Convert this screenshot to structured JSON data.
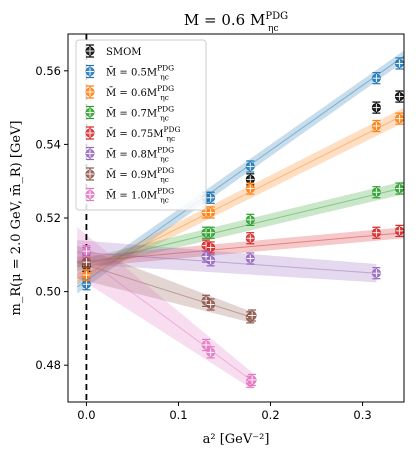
{
  "chart_data": {
    "type": "scatter",
    "title": "M = 0.6 M_ηc^PDG",
    "title_main": "M = 0.6 M",
    "title_sup": "PDG",
    "title_sub": "ηc",
    "xlabel": "a² [GeV⁻²]",
    "ylabel": "m_R(μ = 2.0 GeV, m̄_R) [GeV]",
    "xlim": [
      -0.02,
      0.345
    ],
    "ylim": [
      0.47,
      0.57
    ],
    "xticks": [
      0.0,
      0.1,
      0.2,
      0.3
    ],
    "xtick_labels": [
      "0.0",
      "0.1",
      "0.2",
      "0.3"
    ],
    "yticks": [
      0.48,
      0.5,
      0.52,
      0.54,
      0.56
    ],
    "ytick_labels": [
      "0.48",
      "0.50",
      "0.52",
      "0.54",
      "0.56"
    ],
    "grid": false,
    "legend_position": "top-left",
    "vertical_line_x": 0.0,
    "series": [
      {
        "name": "SMOM",
        "label_sup": "",
        "label_sub": "",
        "color": "#000000",
        "points": [
          [
            0.13,
            0.5255
          ],
          [
            0.178,
            0.5305
          ],
          [
            0.315,
            0.55
          ],
          [
            0.34,
            0.553
          ]
        ],
        "yerr": 0.0015,
        "continuum": [
          0.0,
          0.507
        ],
        "band": null
      },
      {
        "name": "M̄ = 0.5M",
        "label_sup": "PDG",
        "label_sub": "ηc",
        "color": "#1f77b4",
        "points": [
          [
            0.13,
            0.5255
          ],
          [
            0.135,
            0.5255
          ],
          [
            0.178,
            0.534
          ],
          [
            0.315,
            0.558
          ],
          [
            0.34,
            0.562
          ]
        ],
        "yerr": 0.0015,
        "continuum": [
          0.0,
          0.502
        ],
        "band": [
          [
            -0.01,
            0.4995,
            0.503
          ],
          [
            0.345,
            0.5625,
            0.5655
          ]
        ]
      },
      {
        "name": "M̄ = 0.6M",
        "label_sup": "PDG",
        "label_sub": "ηc",
        "color": "#ff7f0e",
        "points": [
          [
            0.13,
            0.5215
          ],
          [
            0.135,
            0.5215
          ],
          [
            0.178,
            0.528
          ],
          [
            0.315,
            0.545
          ],
          [
            0.34,
            0.547
          ]
        ],
        "yerr": 0.0015,
        "continuum": [
          0.0,
          0.5045
        ],
        "band": [
          [
            -0.01,
            0.502,
            0.505
          ],
          [
            0.345,
            0.546,
            0.55
          ]
        ]
      },
      {
        "name": "M̄ = 0.7M",
        "label_sup": "PDG",
        "label_sub": "ηc",
        "color": "#2ca02c",
        "points": [
          [
            0.13,
            0.516
          ],
          [
            0.135,
            0.516
          ],
          [
            0.178,
            0.5195
          ],
          [
            0.315,
            0.527
          ],
          [
            0.34,
            0.528
          ]
        ],
        "yerr": 0.0015,
        "continuum": [
          0.0,
          0.508
        ],
        "band": [
          [
            -0.01,
            0.5055,
            0.5085
          ],
          [
            0.345,
            0.5265,
            0.53
          ]
        ]
      },
      {
        "name": "M̄ = 0.75M",
        "label_sup": "PDG",
        "label_sub": "ηc",
        "color": "#d62728",
        "points": [
          [
            0.13,
            0.5125
          ],
          [
            0.135,
            0.512
          ],
          [
            0.178,
            0.5145
          ],
          [
            0.315,
            0.516
          ],
          [
            0.34,
            0.5165
          ]
        ],
        "yerr": 0.0015,
        "continuum": [
          0.0,
          0.508
        ],
        "band": [
          [
            -0.01,
            0.5065,
            0.5095
          ],
          [
            0.345,
            0.5145,
            0.5175
          ]
        ]
      },
      {
        "name": "M̄ = 0.8M",
        "label_sup": "PDG",
        "label_sub": "ηc",
        "color": "#9467bd",
        "points": [
          [
            0.13,
            0.5095
          ],
          [
            0.135,
            0.5085
          ],
          [
            0.178,
            0.509
          ],
          [
            0.315,
            0.505
          ]
        ],
        "yerr": 0.0015,
        "continuum": [
          0.0,
          0.5105
        ],
        "band": [
          [
            -0.01,
            0.5075,
            0.514
          ],
          [
            0.315,
            0.5025,
            0.5075
          ]
        ]
      },
      {
        "name": "M̄ = 0.9M",
        "label_sup": "PDG",
        "label_sub": "ηc",
        "color": "#8c564b",
        "points": [
          [
            0.13,
            0.4975
          ],
          [
            0.135,
            0.4965
          ],
          [
            0.178,
            0.493
          ],
          [
            0.18,
            0.4935
          ]
        ],
        "yerr": 0.0015,
        "continuum": [
          0.0,
          0.508
        ],
        "band": [
          [
            -0.01,
            0.5035,
            0.5125
          ],
          [
            0.18,
            0.4915,
            0.4945
          ]
        ]
      },
      {
        "name": "M̄ = 1.0M",
        "label_sup": "PDG",
        "label_sub": "ηc",
        "color": "#e377c2",
        "points": [
          [
            0.13,
            0.4855
          ],
          [
            0.135,
            0.4835
          ],
          [
            0.178,
            0.4755
          ],
          [
            0.18,
            0.476
          ]
        ],
        "yerr": 0.0015,
        "continuum": [
          0.0,
          0.511
        ],
        "band": [
          [
            -0.01,
            0.504,
            0.5175
          ],
          [
            0.18,
            0.4735,
            0.478
          ]
        ]
      }
    ]
  }
}
